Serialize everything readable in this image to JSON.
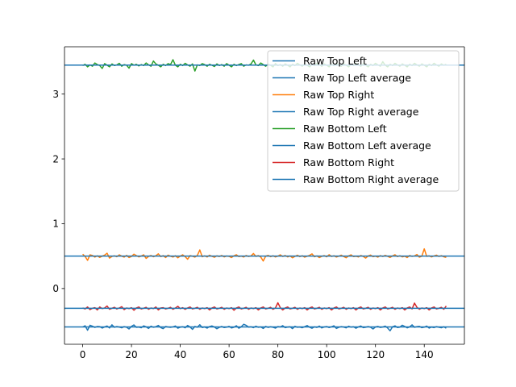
{
  "chart_data": {
    "type": "line",
    "title": "",
    "xlabel": "",
    "ylabel": "",
    "xlim": [
      -7.45,
      156.45
    ],
    "ylim": [
      -0.86,
      3.73
    ],
    "x_ticks": [
      0,
      20,
      40,
      60,
      80,
      100,
      120,
      140
    ],
    "y_ticks": [
      0,
      1,
      2,
      3
    ],
    "x_count": 150,
    "grid": false,
    "legend_position": "top-right",
    "series": [
      {
        "name": "Raw Top Left",
        "color": "#1f77b4",
        "kind": "noisy",
        "x_start": 0,
        "values": [
          -0.594,
          -0.575,
          -0.643,
          -0.567,
          -0.581,
          -0.6,
          -0.585,
          -0.588,
          -0.61,
          -0.592,
          -0.578,
          -0.609,
          -0.56,
          -0.598,
          -0.586,
          -0.594,
          -0.606,
          -0.587,
          -0.597,
          -0.624,
          -0.583,
          -0.562,
          -0.599,
          -0.594,
          -0.605,
          -0.576,
          -0.591,
          -0.616,
          -0.581,
          -0.598,
          -0.589,
          -0.569,
          -0.602,
          -0.619,
          -0.585,
          -0.594,
          -0.599,
          -0.592,
          -0.578,
          -0.612,
          -0.596,
          -0.589,
          -0.606,
          -0.57,
          -0.593,
          -0.63,
          -0.584,
          -0.597,
          -0.559,
          -0.602,
          -0.593,
          -0.611,
          -0.587,
          -0.577,
          -0.594,
          -0.621,
          -0.599,
          -0.585,
          -0.602,
          -0.596,
          -0.583,
          -0.608,
          -0.597,
          -0.574,
          -0.612,
          -0.59,
          -0.552,
          -0.568,
          -0.596,
          -0.59,
          -0.604,
          -0.581,
          -0.598,
          -0.592,
          -0.616,
          -0.584,
          -0.6,
          -0.589,
          -0.597,
          -0.611,
          -0.586,
          -0.593,
          -0.573,
          -0.604,
          -0.595,
          -0.59,
          -0.619,
          -0.582,
          -0.598,
          -0.594,
          -0.605,
          -0.588,
          -0.571,
          -0.597,
          -0.613,
          -0.591,
          -0.6,
          -0.579,
          -0.608,
          -0.593,
          -0.586,
          -0.602,
          -0.59,
          -0.575,
          -0.616,
          -0.598,
          -0.587,
          -0.594,
          -0.607,
          -0.581,
          -0.596,
          -0.589,
          -0.612,
          -0.592,
          -0.578,
          -0.603,
          -0.597,
          -0.586,
          -0.598,
          -0.624,
          -0.593,
          -0.584,
          -0.601,
          -0.594,
          -0.58,
          -0.609,
          -0.652,
          -0.59,
          -0.576,
          -0.602,
          -0.595,
          -0.566,
          -0.585,
          -0.607,
          -0.592,
          -0.561,
          -0.598,
          -0.588,
          -0.583,
          -0.604,
          -0.596,
          -0.579,
          -0.611,
          -0.594,
          -0.603,
          -0.588,
          -0.597,
          -0.605,
          -0.59,
          -0.612
        ]
      },
      {
        "name": "Raw Top Left average",
        "color": "#1f77b4",
        "kind": "hline",
        "value": -0.593
      },
      {
        "name": "Raw Top Right",
        "color": "#ff7f0e",
        "kind": "noisy",
        "x_start": 0,
        "values": [
          0.53,
          0.495,
          0.435,
          0.52,
          0.51,
          0.485,
          0.505,
          0.48,
          0.5,
          0.515,
          0.545,
          0.47,
          0.495,
          0.505,
          0.49,
          0.52,
          0.5,
          0.485,
          0.512,
          0.478,
          0.495,
          0.53,
          0.508,
          0.488,
          0.502,
          0.52,
          0.465,
          0.495,
          0.51,
          0.49,
          0.505,
          0.535,
          0.492,
          0.508,
          0.478,
          0.515,
          0.498,
          0.486,
          0.506,
          0.474,
          0.5,
          0.52,
          0.492,
          0.452,
          0.508,
          0.498,
          0.485,
          0.51,
          0.595,
          0.49,
          0.505,
          0.487,
          0.514,
          0.497,
          0.482,
          0.505,
          0.493,
          0.51,
          0.488,
          0.502,
          0.496,
          0.478,
          0.505,
          0.521,
          0.493,
          0.5,
          0.486,
          0.51,
          0.494,
          0.503,
          0.54,
          0.496,
          0.508,
          0.485,
          0.425,
          0.499,
          0.512,
          0.491,
          0.506,
          0.487,
          0.5,
          0.52,
          0.494,
          0.51,
          0.488,
          0.503,
          0.474,
          0.496,
          0.514,
          0.492,
          0.506,
          0.484,
          0.498,
          0.512,
          0.535,
          0.49,
          0.503,
          0.478,
          0.497,
          0.508,
          0.489,
          0.522,
          0.494,
          0.506,
          0.486,
          0.5,
          0.515,
          0.493,
          0.475,
          0.505,
          0.52,
          0.492,
          0.498,
          0.487,
          0.51,
          0.495,
          0.47,
          0.503,
          0.516,
          0.491,
          0.5,
          0.485,
          0.508,
          0.494,
          0.512,
          0.497,
          0.48,
          0.503,
          0.521,
          0.492,
          0.506,
          0.488,
          0.499,
          0.478,
          0.51,
          0.495,
          0.503,
          0.525,
          0.484,
          0.498,
          0.612,
          0.496,
          0.505,
          0.488,
          0.503,
          0.515,
          0.494,
          0.507,
          0.49,
          0.48
        ]
      },
      {
        "name": "Raw Top Right average",
        "color": "#1f77b4",
        "kind": "hline",
        "value": 0.5
      },
      {
        "name": "Raw Bottom Left",
        "color": "#2ca02c",
        "kind": "noisy",
        "x_start": 0,
        "values": [
          3.44,
          3.46,
          3.42,
          3.45,
          3.43,
          3.48,
          3.455,
          3.44,
          3.395,
          3.47,
          3.445,
          3.42,
          3.465,
          3.44,
          3.45,
          3.475,
          3.43,
          3.455,
          3.445,
          3.4,
          3.47,
          3.445,
          3.46,
          3.435,
          3.455,
          3.44,
          3.48,
          3.45,
          3.43,
          3.51,
          3.465,
          3.445,
          3.42,
          3.46,
          3.44,
          3.47,
          3.455,
          3.53,
          3.445,
          3.42,
          3.46,
          3.44,
          3.475,
          3.45,
          3.43,
          3.465,
          3.355,
          3.45,
          3.44,
          3.47,
          3.455,
          3.43,
          3.46,
          3.445,
          3.425,
          3.465,
          3.44,
          3.455,
          3.43,
          3.47,
          3.445,
          3.42,
          3.46,
          3.44,
          3.455,
          3.47,
          3.43,
          3.45,
          3.445,
          3.465,
          3.525,
          3.45,
          3.44,
          3.48,
          3.455,
          3.43,
          3.46,
          3.445,
          3.42,
          3.47,
          3.44,
          3.455,
          3.43,
          3.465,
          3.445,
          3.42,
          3.46,
          3.44,
          3.475,
          3.45,
          3.43,
          3.465,
          3.445,
          3.42,
          3.46,
          3.44,
          3.475,
          3.45,
          3.43,
          3.465,
          3.445,
          3.42,
          3.46,
          3.44,
          3.47,
          3.45,
          3.43,
          3.465,
          3.445,
          3.42,
          3.46,
          3.44,
          3.475,
          3.45,
          3.43,
          3.465,
          3.445,
          3.42,
          3.46,
          3.44,
          3.475,
          3.45,
          3.43,
          3.5,
          3.445,
          3.42,
          3.46,
          3.44,
          3.475,
          3.45,
          3.43,
          3.465,
          3.445,
          3.42,
          3.46,
          3.44,
          3.475,
          3.45,
          3.43,
          3.465,
          3.445,
          3.42,
          3.46,
          3.44,
          3.475,
          3.45,
          3.43,
          3.465,
          3.445,
          3.46
        ]
      },
      {
        "name": "Raw Bottom Left average",
        "color": "#1f77b4",
        "kind": "hline",
        "value": 3.447
      },
      {
        "name": "Raw Bottom Right",
        "color": "#d62728",
        "kind": "noisy",
        "x_start": 0,
        "values": [
          -0.3,
          -0.315,
          -0.285,
          -0.325,
          -0.305,
          -0.295,
          -0.33,
          -0.285,
          -0.31,
          -0.3,
          -0.27,
          -0.32,
          -0.305,
          -0.29,
          -0.315,
          -0.3,
          -0.28,
          -0.325,
          -0.3,
          -0.31,
          -0.295,
          -0.335,
          -0.3,
          -0.285,
          -0.315,
          -0.305,
          -0.29,
          -0.32,
          -0.3,
          -0.31,
          -0.285,
          -0.33,
          -0.3,
          -0.295,
          -0.315,
          -0.305,
          -0.29,
          -0.32,
          -0.3,
          -0.275,
          -0.31,
          -0.295,
          -0.32,
          -0.3,
          -0.285,
          -0.315,
          -0.305,
          -0.29,
          -0.32,
          -0.3,
          -0.31,
          -0.295,
          -0.33,
          -0.3,
          -0.285,
          -0.315,
          -0.305,
          -0.29,
          -0.32,
          -0.3,
          -0.31,
          -0.295,
          -0.335,
          -0.3,
          -0.285,
          -0.315,
          -0.305,
          -0.29,
          -0.32,
          -0.3,
          -0.31,
          -0.295,
          -0.33,
          -0.3,
          -0.285,
          -0.315,
          -0.305,
          -0.29,
          -0.32,
          -0.3,
          -0.22,
          -0.295,
          -0.33,
          -0.3,
          -0.285,
          -0.315,
          -0.305,
          -0.29,
          -0.32,
          -0.3,
          -0.31,
          -0.295,
          -0.33,
          -0.3,
          -0.285,
          -0.315,
          -0.305,
          -0.29,
          -0.32,
          -0.3,
          -0.31,
          -0.295,
          -0.33,
          -0.3,
          -0.285,
          -0.315,
          -0.305,
          -0.29,
          -0.32,
          -0.3,
          -0.31,
          -0.295,
          -0.33,
          -0.3,
          -0.285,
          -0.315,
          -0.305,
          -0.29,
          -0.32,
          -0.3,
          -0.31,
          -0.295,
          -0.33,
          -0.3,
          -0.285,
          -0.315,
          -0.305,
          -0.29,
          -0.32,
          -0.3,
          -0.31,
          -0.295,
          -0.33,
          -0.3,
          -0.285,
          -0.315,
          -0.225,
          -0.29,
          -0.32,
          -0.3,
          -0.31,
          -0.295,
          -0.33,
          -0.3,
          -0.285,
          -0.315,
          -0.305,
          -0.29,
          -0.32,
          -0.27
        ]
      },
      {
        "name": "Raw Bottom Right average",
        "color": "#1f77b4",
        "kind": "hline",
        "value": -0.305
      }
    ]
  }
}
